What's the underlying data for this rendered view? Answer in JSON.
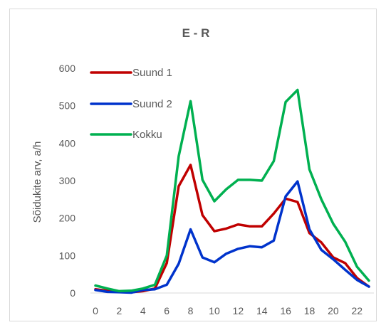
{
  "chart_data": {
    "type": "line",
    "title": "E - R",
    "xlabel": "",
    "ylabel": "Sõidukite arv, a/h",
    "x": [
      0,
      1,
      2,
      3,
      4,
      5,
      6,
      7,
      8,
      9,
      10,
      11,
      12,
      13,
      14,
      15,
      16,
      17,
      18,
      19,
      20,
      21,
      22,
      23
    ],
    "xticks": [
      0,
      2,
      4,
      6,
      8,
      10,
      12,
      14,
      16,
      18,
      20,
      22
    ],
    "ylim": [
      0,
      600
    ],
    "yticks": [
      0,
      100,
      200,
      300,
      400,
      500,
      600
    ],
    "grid": false,
    "legend_position": "top-left",
    "series": [
      {
        "name": "Suund 1",
        "color": "#c00000",
        "values": [
          10,
          6,
          3,
          2,
          5,
          12,
          80,
          285,
          342,
          208,
          165,
          172,
          183,
          178,
          178,
          212,
          252,
          243,
          160,
          135,
          95,
          80,
          40,
          17
        ]
      },
      {
        "name": "Suund 2",
        "color": "#0033cc",
        "values": [
          8,
          3,
          2,
          1,
          8,
          10,
          22,
          78,
          170,
          95,
          82,
          105,
          118,
          125,
          122,
          140,
          258,
          298,
          170,
          115,
          90,
          62,
          35,
          17
        ]
      },
      {
        "name": "Kokku",
        "color": "#00b050",
        "values": [
          20,
          12,
          5,
          6,
          12,
          22,
          100,
          365,
          512,
          302,
          245,
          277,
          302,
          302,
          300,
          352,
          510,
          542,
          330,
          250,
          185,
          137,
          70,
          33
        ]
      }
    ]
  }
}
